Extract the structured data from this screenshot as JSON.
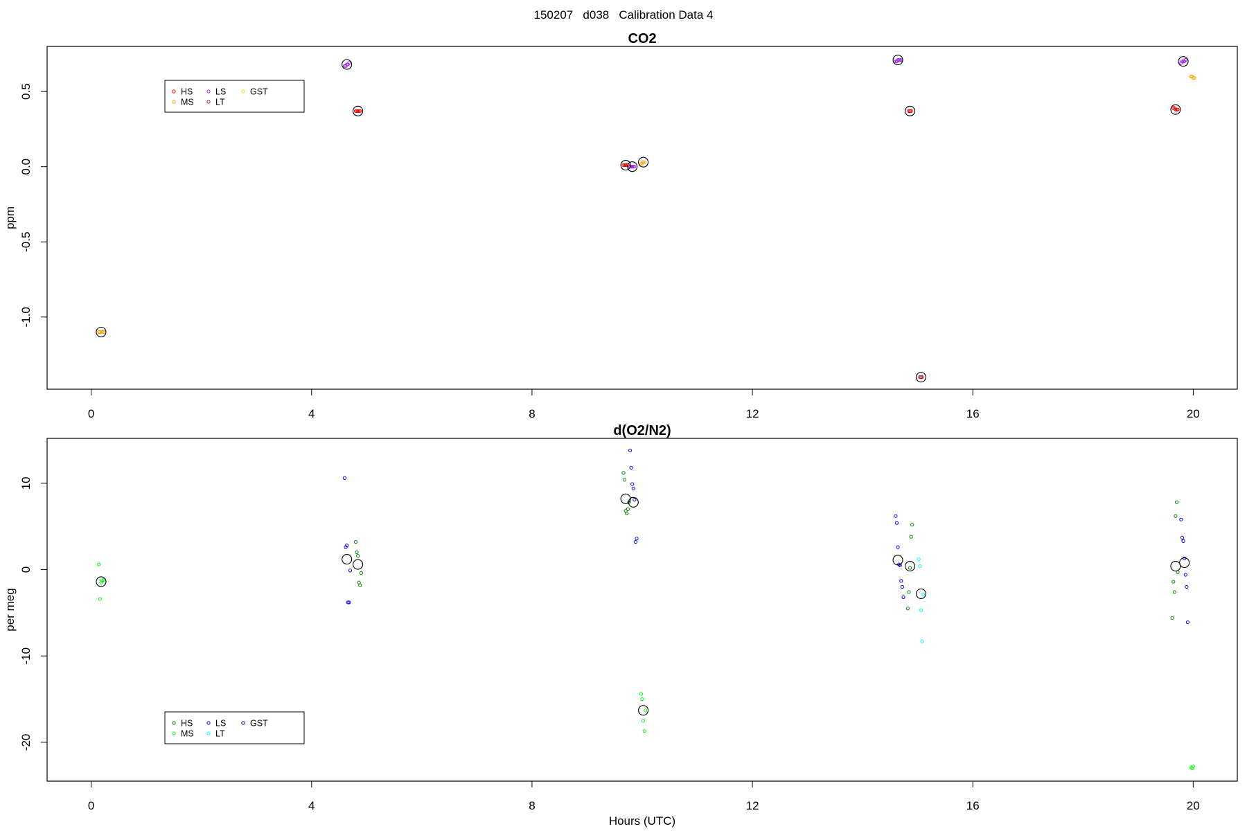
{
  "page_title": "150207   d038   Calibration Data 4",
  "colors": {
    "HS_co2": "#ff0000",
    "MS_co2": "#ffa500",
    "LS_co2": "#a020f0",
    "LT_co2": "#b22222",
    "GST_co2": "#ffd700",
    "HS_o2": "#008000",
    "MS_o2": "#00ff00",
    "LS_o2": "#0000ff",
    "LT_o2": "#00ffff",
    "GST_o2": "#00008b",
    "mean": "#000000"
  },
  "chart_data": [
    {
      "type": "scatter",
      "title": "CO2",
      "xlabel": "",
      "ylabel": "ppm",
      "xlim": [
        -0.8,
        20.8
      ],
      "ylim": [
        -1.48,
        0.8
      ],
      "xticks": [
        0,
        4,
        8,
        12,
        16,
        20
      ],
      "xtick_labels": [
        "0",
        "4",
        "8",
        "12",
        "16",
        "20"
      ],
      "yticks": [
        -1.0,
        -0.5,
        0.0,
        0.5
      ],
      "ytick_labels": [
        "-1.0",
        "-0.5",
        "0.0",
        "0.5"
      ],
      "legend": {
        "entries": [
          "HS",
          "MS",
          "LS",
          "LT",
          "GST"
        ],
        "placement": "upper-left"
      },
      "series": [
        {
          "name": "HS",
          "color_key": "HS_co2",
          "x": [
            4.8,
            4.82,
            4.84,
            4.86,
            4.88,
            9.66,
            9.68,
            9.7,
            9.72,
            9.74,
            14.84,
            14.86,
            14.88,
            19.64,
            19.66,
            19.68,
            19.7,
            19.72
          ],
          "y": [
            0.37,
            0.37,
            0.37,
            0.37,
            0.37,
            0.01,
            0.01,
            0.01,
            0.01,
            0.01,
            0.37,
            0.37,
            0.37,
            0.39,
            0.39,
            0.38,
            0.38,
            0.38
          ]
        },
        {
          "name": "MS",
          "color_key": "MS_co2",
          "x": [
            0.14,
            0.16,
            0.18,
            0.2,
            0.22,
            9.98,
            10.0,
            10.02,
            10.04,
            19.96,
            19.98,
            20.0,
            20.02
          ],
          "y": [
            -1.1,
            -1.1,
            -1.1,
            -1.1,
            -1.1,
            0.02,
            0.02,
            0.03,
            0.03,
            0.6,
            0.6,
            0.59,
            0.59
          ]
        },
        {
          "name": "LS",
          "color_key": "LS_co2",
          "x": [
            4.6,
            4.62,
            4.64,
            4.66,
            4.68,
            9.78,
            9.8,
            9.82,
            9.84,
            9.86,
            14.6,
            14.62,
            14.64,
            14.66,
            14.68,
            14.7,
            19.78,
            19.8,
            19.82,
            19.84,
            19.86
          ],
          "y": [
            0.67,
            0.67,
            0.68,
            0.68,
            0.69,
            0.0,
            0.0,
            0.0,
            0.0,
            0.0,
            0.7,
            0.7,
            0.71,
            0.71,
            0.71,
            0.71,
            0.69,
            0.7,
            0.7,
            0.7,
            0.71
          ]
        },
        {
          "name": "LT",
          "color_key": "LT_co2",
          "x": [
            15.04,
            15.06,
            15.08
          ],
          "y": [
            -1.4,
            -1.4,
            -1.4
          ]
        },
        {
          "name": "GST",
          "color_key": "GST_co2",
          "x": [],
          "y": []
        },
        {
          "name": "",
          "color_key": "mean",
          "marker": "large-open-circle",
          "x": [
            0.18,
            4.64,
            4.84,
            9.7,
            9.82,
            10.02,
            14.64,
            14.86,
            15.06,
            19.68,
            19.82
          ],
          "y": [
            -1.1,
            0.68,
            0.37,
            0.01,
            0.0,
            0.03,
            0.71,
            0.37,
            -1.4,
            0.38,
            0.7
          ]
        }
      ]
    },
    {
      "type": "scatter",
      "title": "d(O2/N2)",
      "xlabel": "Hours (UTC)",
      "ylabel": "per meg",
      "xlim": [
        -0.8,
        20.8
      ],
      "ylim": [
        -24.5,
        15.2
      ],
      "xticks": [
        0,
        4,
        8,
        12,
        16,
        20
      ],
      "xtick_labels": [
        "0",
        "4",
        "8",
        "12",
        "16",
        "20"
      ],
      "yticks": [
        -20,
        -10,
        0,
        10
      ],
      "ytick_labels": [
        "-20",
        "-10",
        "0",
        "10"
      ],
      "legend": {
        "entries": [
          "HS",
          "MS",
          "LS",
          "LT",
          "GST"
        ],
        "placement": "lower-left"
      },
      "series": [
        {
          "name": "HS",
          "color_key": "HS_o2",
          "x": [
            4.8,
            4.82,
            4.84,
            4.86,
            4.88,
            4.9,
            9.66,
            9.68,
            9.7,
            9.72,
            9.74,
            9.76,
            14.82,
            14.84,
            14.86,
            14.88,
            14.9,
            19.62,
            19.64,
            19.66,
            19.68,
            19.7,
            19.72
          ],
          "y": [
            3.2,
            2.0,
            1.6,
            -1.5,
            -1.8,
            -0.4,
            11.2,
            10.4,
            6.8,
            6.5,
            7.0,
            7.8,
            -4.5,
            -2.6,
            0.2,
            3.8,
            5.2,
            -5.6,
            -1.4,
            -2.6,
            6.2,
            7.8,
            -0.3
          ]
        },
        {
          "name": "MS",
          "color_key": "MS_o2",
          "x": [
            0.14,
            0.16,
            0.18,
            0.2,
            0.22,
            9.98,
            10.0,
            10.02,
            10.04,
            10.06,
            19.96,
            19.98,
            20.0
          ],
          "y": [
            0.6,
            -3.4,
            -1.5,
            -1.3,
            -1.2,
            -14.4,
            -15.0,
            -17.5,
            -18.7,
            -16.3,
            -22.9,
            -23.0,
            -22.8
          ]
        },
        {
          "name": "LS",
          "color_key": "LS_o2",
          "x": [
            4.6,
            4.62,
            4.64,
            4.66,
            4.68,
            4.7,
            9.78,
            9.8,
            9.82,
            9.84,
            9.86,
            9.88,
            9.9,
            14.6,
            14.62,
            14.64,
            14.66,
            14.68,
            14.7,
            14.72,
            14.74,
            19.78,
            19.8,
            19.82,
            19.84,
            19.86,
            19.88,
            19.9
          ],
          "y": [
            10.6,
            2.6,
            2.8,
            -3.8,
            -3.8,
            -0.1,
            13.8,
            11.8,
            9.9,
            9.4,
            8.1,
            3.2,
            3.6,
            6.2,
            5.4,
            2.6,
            0.6,
            0.5,
            -1.3,
            -2.0,
            -3.2,
            5.8,
            3.7,
            3.3,
            1.3,
            -0.6,
            -2.0,
            -6.1
          ]
        },
        {
          "name": "LT",
          "color_key": "LT_o2",
          "x": [
            15.02,
            15.04,
            15.06,
            15.08,
            15.1
          ],
          "y": [
            1.2,
            0.4,
            -4.7,
            -8.3,
            -2.9
          ]
        },
        {
          "name": "GST",
          "color_key": "GST_o2",
          "x": [],
          "y": []
        },
        {
          "name": "",
          "color_key": "mean",
          "marker": "large-open-circle",
          "x": [
            0.18,
            4.64,
            4.84,
            9.7,
            9.84,
            10.02,
            14.64,
            14.86,
            15.06,
            19.68,
            19.84
          ],
          "y": [
            -1.4,
            1.2,
            0.6,
            8.2,
            7.8,
            -16.3,
            1.1,
            0.4,
            -2.8,
            0.4,
            0.8
          ]
        }
      ]
    }
  ]
}
